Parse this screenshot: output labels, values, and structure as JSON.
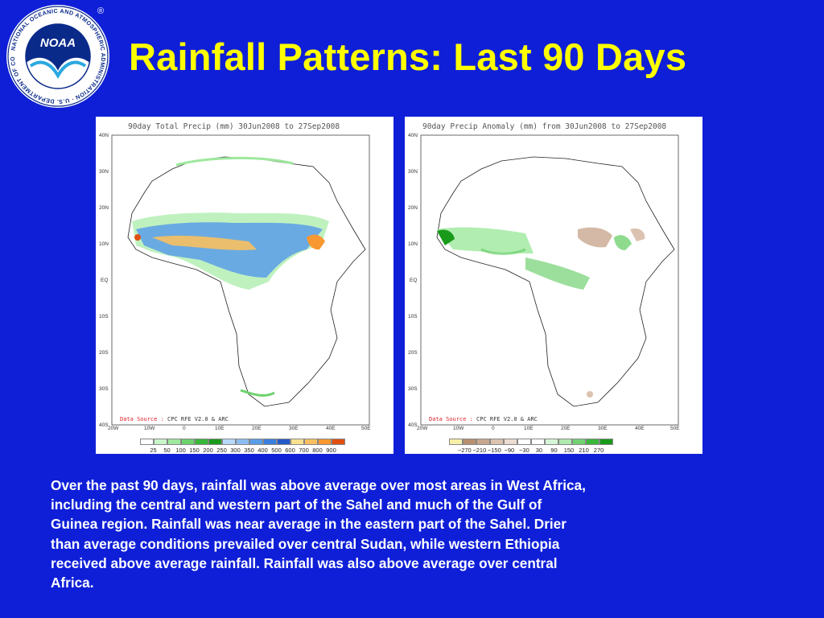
{
  "slide": {
    "title": "Rainfall Patterns: Last 90 Days",
    "description": "Over the past 90 days, rainfall was above average over most areas in West Africa,\nincluding the central and western part of the Sahel and much of the Gulf of\nGuinea region.  Rainfall was near average in the eastern part of the Sahel.  Drier\nthan average conditions prevailed over central Sudan, while western Ethiopia\nreceived above average rainfall.  Rainfall was also above average over central\nAfrica."
  },
  "logo": {
    "icon": "noaa-logo",
    "text": "NOAA",
    "ring_text": "NATIONAL OCEANIC AND ATMOSPHERIC ADMINISTRATION · U.S. DEPARTMENT OF COMMERCE",
    "registered_mark": "®"
  },
  "maps": [
    {
      "title": "90day Total Precip (mm)    30Jun2008 to 27Sep2008",
      "lat_labels": [
        "40N",
        "30N",
        "20N",
        "10N",
        "EQ",
        "10S",
        "20S",
        "30S",
        "40S"
      ],
      "lon_labels": [
        "20W",
        "10W",
        "0",
        "10E",
        "20E",
        "30E",
        "40E",
        "50E"
      ],
      "data_source_label": "Data Source :",
      "data_source_value": "CPC RFE V2.0 & ARC",
      "colorbar": {
        "colors": [
          "#ffffff",
          "#c8f5c8",
          "#9ee89e",
          "#6cd26c",
          "#38b838",
          "#1a9a1a",
          "#b8d8f8",
          "#8cbef0",
          "#5a9ee8",
          "#3a7ede",
          "#2458c8",
          "#f8e090",
          "#f8c060",
          "#f89830",
          "#e05010"
        ],
        "labels": [
          "25",
          "50",
          "100",
          "150",
          "200",
          "250",
          "300",
          "350",
          "400",
          "500",
          "600",
          "700",
          "800",
          "900"
        ]
      }
    },
    {
      "title": "90day Precip Anomaly (mm) from 30Jun2008 to 27Sep2008",
      "lat_labels": [
        "40N",
        "30N",
        "20N",
        "10N",
        "EQ",
        "10S",
        "20S",
        "30S",
        "40S"
      ],
      "lon_labels": [
        "20W",
        "10W",
        "0",
        "10E",
        "20E",
        "30E",
        "40E",
        "50E"
      ],
      "data_source_label": "Data Source :",
      "data_source_value": "CPC RFE V2.0 & ARC",
      "colorbar": {
        "colors": [
          "#f8f0a8",
          "#b89070",
          "#c8a890",
          "#dcc2b0",
          "#ecdcd0",
          "#ffffff",
          "#ffffff",
          "#d6f5d6",
          "#aeeaae",
          "#72d272",
          "#3ab83a",
          "#1a9a1a"
        ],
        "labels": [
          "−270",
          "−210",
          "−150",
          "−90",
          "−30",
          "30",
          "90",
          "150",
          "210",
          "270"
        ]
      }
    }
  ],
  "colors": {
    "background": "#0f1fd8",
    "title": "#ffff00",
    "text": "#ffffff"
  }
}
